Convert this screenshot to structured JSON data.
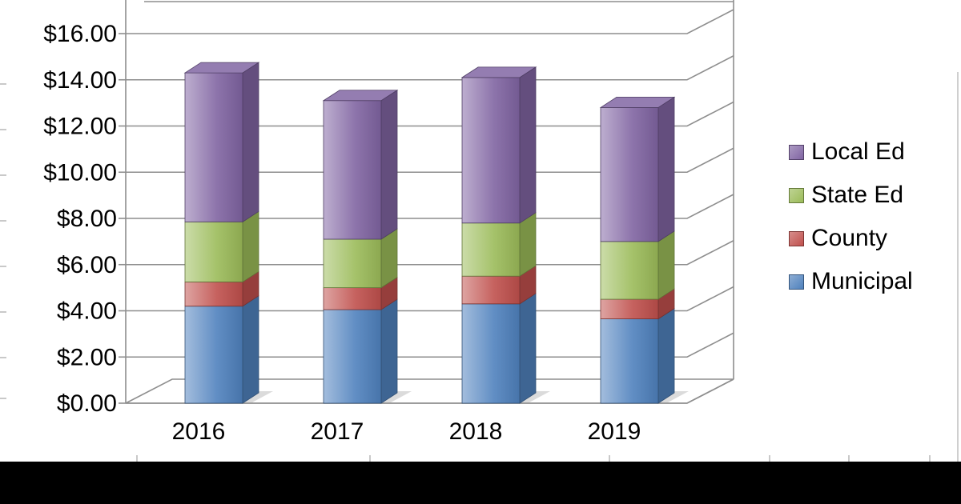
{
  "chart_data": {
    "type": "bar",
    "stacked": true,
    "style": "3d",
    "title": "",
    "categories": [
      "2016",
      "2017",
      "2018",
      "2019"
    ],
    "series": [
      {
        "name": "Municipal",
        "color": "#4f81bd",
        "values": [
          4.2,
          4.05,
          4.3,
          3.65
        ]
      },
      {
        "name": "County",
        "color": "#c0504d",
        "values": [
          1.05,
          0.95,
          1.2,
          0.85
        ]
      },
      {
        "name": "State Ed",
        "color": "#9bbb59",
        "values": [
          2.6,
          2.1,
          2.3,
          2.5
        ]
      },
      {
        "name": "Local Ed",
        "color": "#8064a2",
        "values": [
          6.45,
          6.0,
          6.3,
          5.8
        ]
      }
    ],
    "stack_totals": [
      14.3,
      13.1,
      14.1,
      12.8
    ],
    "y_axis": {
      "min": 0,
      "max": 16,
      "step": 2,
      "format": "currency",
      "tick_labels": [
        "$0.00",
        "$2.00",
        "$4.00",
        "$6.00",
        "$8.00",
        "$10.00",
        "$12.00",
        "$14.00",
        "$16.00"
      ]
    },
    "x_axis": {
      "tick_labels": [
        "2016",
        "2017",
        "2018",
        "2019"
      ]
    },
    "grid": true,
    "legend": {
      "position": "right",
      "entries": [
        "Local Ed",
        "State Ed",
        "County",
        "Municipal"
      ]
    },
    "colors": {
      "gridline": "#8e8e8e",
      "text": "#000000",
      "background": "#ffffff",
      "bottom_band": "#000000"
    }
  }
}
